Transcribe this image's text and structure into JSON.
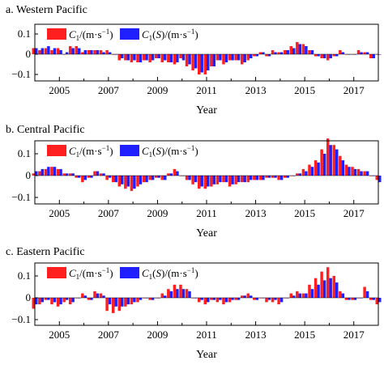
{
  "colors": {
    "c1": "#ff1f1f",
    "c1s": "#1f1fff"
  },
  "chart_data": [
    {
      "type": "bar",
      "title": "a. Western Pacific",
      "xlabel": "Year",
      "ylabel": "",
      "xlim": [
        2004.0,
        2018.0
      ],
      "ylim": [
        -0.15,
        0.15
      ],
      "xticks": [
        "2005",
        "2007",
        "2009",
        "2011",
        "2013",
        "2015",
        "2017"
      ],
      "yticks": [
        "0.1",
        "0",
        "−0.1"
      ],
      "legend": [
        "C1/(m·s−1)",
        "C1(S)/(m·s−1)"
      ],
      "x": [
        2004.0,
        2004.25,
        2004.5,
        2004.75,
        2005.0,
        2005.25,
        2005.5,
        2005.75,
        2006.0,
        2006.25,
        2006.5,
        2006.75,
        2007.0,
        2007.25,
        2007.5,
        2007.75,
        2008.0,
        2008.25,
        2008.5,
        2008.75,
        2009.0,
        2009.25,
        2009.5,
        2009.75,
        2010.0,
        2010.25,
        2010.5,
        2010.75,
        2011.0,
        2011.25,
        2011.5,
        2011.75,
        2012.0,
        2012.25,
        2012.5,
        2012.75,
        2013.0,
        2013.25,
        2013.5,
        2013.75,
        2014.0,
        2014.25,
        2014.5,
        2014.75,
        2015.0,
        2015.25,
        2015.5,
        2015.75,
        2016.0,
        2016.25,
        2016.5,
        2016.75,
        2017.0,
        2017.25,
        2017.5,
        2017.75,
        2018.0
      ],
      "series": [
        {
          "name": "C1/(m·s−1)",
          "values": [
            0.03,
            0.02,
            0.03,
            0.02,
            0.03,
            0.0,
            0.04,
            0.04,
            0.01,
            0.02,
            0.02,
            0.02,
            0.02,
            0.0,
            -0.03,
            -0.03,
            -0.04,
            -0.04,
            -0.03,
            -0.04,
            -0.02,
            -0.04,
            -0.04,
            -0.05,
            -0.02,
            -0.06,
            -0.08,
            -0.1,
            -0.1,
            -0.06,
            -0.03,
            -0.05,
            -0.03,
            -0.03,
            -0.05,
            -0.03,
            -0.01,
            0.01,
            -0.01,
            0.02,
            0.01,
            0.02,
            0.04,
            0.06,
            0.05,
            0.02,
            -0.01,
            -0.02,
            -0.03,
            -0.01,
            0.02,
            0.0,
            0.0,
            0.02,
            0.01,
            -0.02,
            0.0
          ]
        },
        {
          "name": "C1(S)/(m·s−1)",
          "values": [
            0.03,
            0.03,
            0.04,
            0.03,
            0.02,
            0.01,
            0.03,
            0.03,
            0.02,
            0.02,
            0.02,
            0.01,
            0.01,
            0.0,
            -0.02,
            -0.03,
            -0.03,
            -0.04,
            -0.03,
            -0.03,
            -0.02,
            -0.03,
            -0.04,
            -0.04,
            -0.03,
            -0.05,
            -0.07,
            -0.09,
            -0.08,
            -0.06,
            -0.03,
            -0.04,
            -0.03,
            -0.03,
            -0.04,
            -0.02,
            -0.01,
            0.01,
            -0.01,
            0.01,
            0.01,
            0.02,
            0.03,
            0.05,
            0.04,
            0.02,
            -0.01,
            -0.02,
            -0.02,
            -0.01,
            0.01,
            0.0,
            0.0,
            0.01,
            0.01,
            -0.02,
            0.0
          ]
        }
      ]
    },
    {
      "type": "bar",
      "title": "b. Central Pacific",
      "xlabel": "Year",
      "ylabel": "",
      "xlim": [
        2004.0,
        2018.0
      ],
      "ylim": [
        -0.15,
        0.2
      ],
      "xticks": [
        "2005",
        "2007",
        "2009",
        "2011",
        "2013",
        "2015",
        "2017"
      ],
      "yticks": [
        "0.1",
        "0",
        "−0.1"
      ],
      "legend": [
        "C1/(m·s−1)",
        "C1(S)/(m·s−1)"
      ],
      "x": [
        2004.0,
        2004.25,
        2004.5,
        2004.75,
        2005.0,
        2005.25,
        2005.5,
        2005.75,
        2006.0,
        2006.25,
        2006.5,
        2006.75,
        2007.0,
        2007.25,
        2007.5,
        2007.75,
        2008.0,
        2008.25,
        2008.5,
        2008.75,
        2009.0,
        2009.25,
        2009.5,
        2009.75,
        2010.0,
        2010.25,
        2010.5,
        2010.75,
        2011.0,
        2011.25,
        2011.5,
        2011.75,
        2012.0,
        2012.25,
        2012.5,
        2012.75,
        2013.0,
        2013.25,
        2013.5,
        2013.75,
        2014.0,
        2014.25,
        2014.5,
        2014.75,
        2015.0,
        2015.25,
        2015.5,
        2015.75,
        2016.0,
        2016.25,
        2016.5,
        2016.75,
        2017.0,
        2017.25,
        2017.5,
        2017.75,
        2018.0
      ],
      "series": [
        {
          "name": "C1/(m·s−1)",
          "values": [
            0.01,
            0.02,
            0.03,
            0.04,
            0.03,
            0.01,
            0.01,
            -0.01,
            -0.03,
            -0.01,
            0.02,
            0.01,
            -0.02,
            -0.03,
            -0.05,
            -0.06,
            -0.07,
            -0.05,
            -0.03,
            -0.02,
            -0.01,
            -0.02,
            0.01,
            0.03,
            0.0,
            -0.02,
            -0.04,
            -0.06,
            -0.06,
            -0.05,
            -0.04,
            -0.03,
            -0.05,
            -0.04,
            -0.03,
            -0.03,
            -0.02,
            -0.02,
            -0.01,
            -0.01,
            -0.02,
            -0.01,
            0.0,
            0.01,
            0.03,
            0.05,
            0.07,
            0.12,
            0.17,
            0.14,
            0.09,
            0.05,
            0.04,
            0.03,
            0.02,
            0.0,
            -0.02
          ]
        },
        {
          "name": "C1(S)/(m·s−1)",
          "values": [
            0.02,
            0.03,
            0.04,
            0.04,
            0.03,
            0.01,
            0.01,
            -0.01,
            -0.02,
            -0.01,
            0.02,
            0.01,
            -0.01,
            -0.03,
            -0.04,
            -0.05,
            -0.06,
            -0.04,
            -0.03,
            -0.02,
            -0.01,
            -0.02,
            0.01,
            0.02,
            0.0,
            -0.02,
            -0.03,
            -0.05,
            -0.05,
            -0.04,
            -0.03,
            -0.03,
            -0.04,
            -0.03,
            -0.03,
            -0.02,
            -0.02,
            -0.02,
            -0.01,
            -0.01,
            -0.02,
            -0.01,
            0.0,
            0.01,
            0.02,
            0.04,
            0.06,
            0.1,
            0.14,
            0.12,
            0.07,
            0.04,
            0.03,
            0.02,
            0.02,
            0.0,
            -0.03
          ]
        }
      ]
    },
    {
      "type": "bar",
      "title": "c. Eastern Pacific",
      "xlabel": "Year",
      "ylabel": "",
      "xlim": [
        2004.0,
        2018.0
      ],
      "ylim": [
        -0.15,
        0.2
      ],
      "xticks": [
        "2005",
        "2007",
        "2009",
        "2011",
        "2013",
        "2015",
        "2017"
      ],
      "yticks": [
        "0.1",
        "0",
        "−0.1"
      ],
      "legend": [
        "C1/(m·s−1)",
        "C1(S)/(m·s−1)"
      ],
      "x": [
        2004.0,
        2004.25,
        2004.5,
        2004.75,
        2005.0,
        2005.25,
        2005.5,
        2005.75,
        2006.0,
        2006.25,
        2006.5,
        2006.75,
        2007.0,
        2007.25,
        2007.5,
        2007.75,
        2008.0,
        2008.25,
        2008.5,
        2008.75,
        2009.0,
        2009.25,
        2009.5,
        2009.75,
        2010.0,
        2010.25,
        2010.5,
        2010.75,
        2011.0,
        2011.25,
        2011.5,
        2011.75,
        2012.0,
        2012.25,
        2012.5,
        2012.75,
        2013.0,
        2013.25,
        2013.5,
        2013.75,
        2014.0,
        2014.25,
        2014.5,
        2014.75,
        2015.0,
        2015.25,
        2015.5,
        2015.75,
        2016.0,
        2016.25,
        2016.5,
        2016.75,
        2017.0,
        2017.25,
        2017.5,
        2017.75,
        2018.0
      ],
      "series": [
        {
          "name": "C1/(m·s−1)",
          "values": [
            -0.05,
            -0.03,
            -0.01,
            -0.03,
            -0.04,
            -0.02,
            -0.03,
            0.0,
            0.02,
            -0.01,
            0.03,
            0.02,
            -0.06,
            -0.07,
            -0.06,
            -0.04,
            -0.03,
            -0.02,
            0.0,
            -0.01,
            0.0,
            0.02,
            0.04,
            0.06,
            0.06,
            0.04,
            0.0,
            -0.02,
            -0.03,
            -0.01,
            -0.02,
            -0.03,
            -0.02,
            -0.01,
            0.01,
            0.02,
            -0.01,
            0.0,
            -0.02,
            -0.02,
            -0.03,
            0.0,
            0.02,
            0.03,
            0.02,
            0.06,
            0.09,
            0.12,
            0.14,
            0.1,
            0.03,
            -0.01,
            -0.01,
            0.0,
            0.05,
            -0.01,
            -0.03
          ]
        },
        {
          "name": "C1(S)/(m·s−1)",
          "values": [
            -0.03,
            -0.02,
            -0.01,
            -0.02,
            -0.03,
            -0.01,
            -0.02,
            0.0,
            0.01,
            -0.01,
            0.02,
            0.01,
            -0.03,
            -0.04,
            -0.04,
            -0.03,
            -0.02,
            -0.01,
            0.0,
            -0.01,
            0.0,
            0.01,
            0.03,
            0.04,
            0.04,
            0.03,
            0.0,
            -0.01,
            -0.02,
            -0.01,
            -0.01,
            -0.02,
            -0.01,
            -0.01,
            0.01,
            0.01,
            -0.01,
            0.0,
            -0.01,
            -0.01,
            -0.02,
            0.0,
            0.01,
            0.02,
            0.02,
            0.04,
            0.06,
            0.08,
            0.09,
            0.07,
            0.02,
            -0.01,
            -0.01,
            0.0,
            0.03,
            -0.01,
            -0.02
          ]
        }
      ]
    }
  ]
}
